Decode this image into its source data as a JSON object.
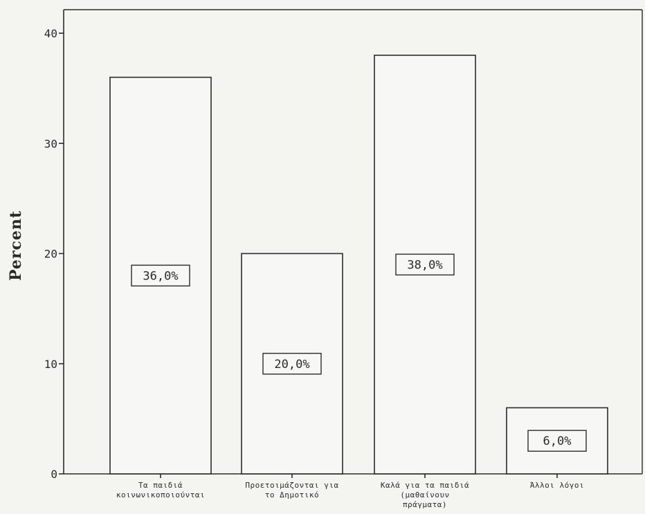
{
  "chart_data": {
    "type": "bar",
    "title": "",
    "xlabel": "",
    "ylabel": "Percent",
    "ylim": [
      0,
      40
    ],
    "yticks": [
      0,
      10,
      20,
      30,
      40
    ],
    "categories": [
      [
        "Τα παιδιά",
        "κοινωνικοποιούνται"
      ],
      [
        "Προετοιμάζονται για",
        "το Δημοτικό"
      ],
      [
        "Καλά για τα παιδιά",
        "(μαθαίνουν",
        "πράγματα)"
      ],
      [
        "Άλλοι λόγοι"
      ]
    ],
    "values": [
      36.0,
      20.0,
      38.0,
      6.0
    ],
    "data_labels": [
      "36,0%",
      "20,0%",
      "38,0%",
      "6,0%"
    ],
    "grid": false,
    "legend": "none"
  }
}
